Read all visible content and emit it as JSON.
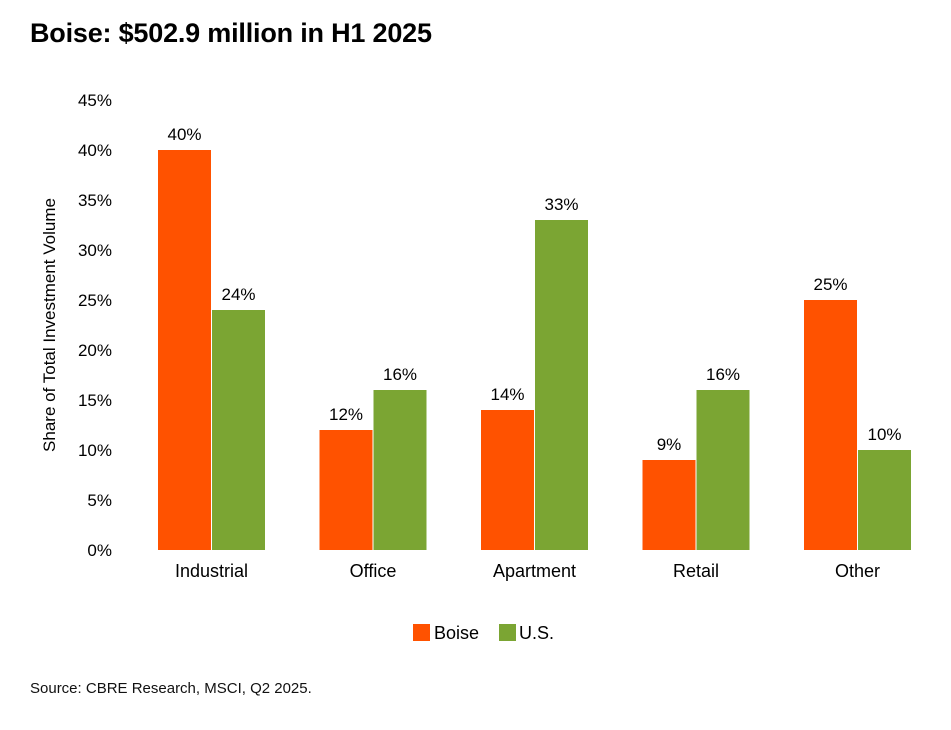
{
  "title": "Boise: $502.9 million in H1 2025",
  "source": "Source: CBRE Research, MSCI, Q2 2025.",
  "chart_data": {
    "type": "bar",
    "title": "Boise: $502.9 million in H1 2025",
    "ylabel": "Share of Total Investment Volume",
    "xlabel": "",
    "categories": [
      "Industrial",
      "Office",
      "Apartment",
      "Retail",
      "Other"
    ],
    "series": [
      {
        "name": "Boise",
        "color": "#FF5200",
        "values": [
          40,
          12,
          14,
          9,
          25
        ],
        "labels": [
          "40%",
          "12%",
          "14%",
          "9%",
          "25%"
        ]
      },
      {
        "name": "U.S.",
        "color": "#7BA533",
        "values": [
          24,
          16,
          33,
          16,
          10
        ],
        "labels": [
          "24%",
          "16%",
          "33%",
          "16%",
          "10%"
        ]
      }
    ],
    "ylim": [
      0,
      45
    ],
    "yticks": [
      "0%",
      "5%",
      "10%",
      "15%",
      "20%",
      "25%",
      "30%",
      "35%",
      "40%",
      "45%"
    ],
    "grid": false,
    "legend": "bottom-center"
  }
}
